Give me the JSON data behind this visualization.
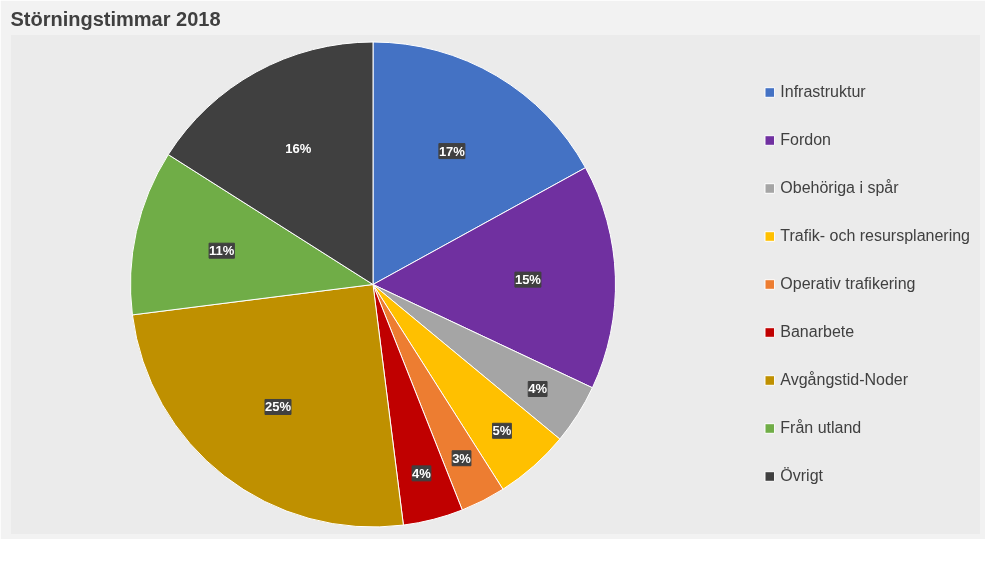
{
  "chart_data": {
    "type": "pie",
    "title": "Störningstimmar 2018",
    "categories": [
      "Infrastruktur",
      "Fordon",
      "Obehöriga i spår",
      "Trafik- och resursplanering",
      "Operativ trafikering",
      "Banarbete",
      "Avgångstid-Noder",
      "Från utland",
      "Övrigt"
    ],
    "values": [
      17,
      15,
      4,
      5,
      3,
      4,
      25,
      11,
      16
    ],
    "colors": [
      "#4472c4",
      "#7030a0",
      "#a5a5a5",
      "#ffc000",
      "#ed7d31",
      "#c00000",
      "#bf9000",
      "#70ad47",
      "#404040"
    ],
    "value_labels": [
      "17%",
      "15%",
      "4%",
      "5%",
      "3%",
      "4%",
      "25%",
      "11%",
      "16%"
    ],
    "legend": "right"
  }
}
